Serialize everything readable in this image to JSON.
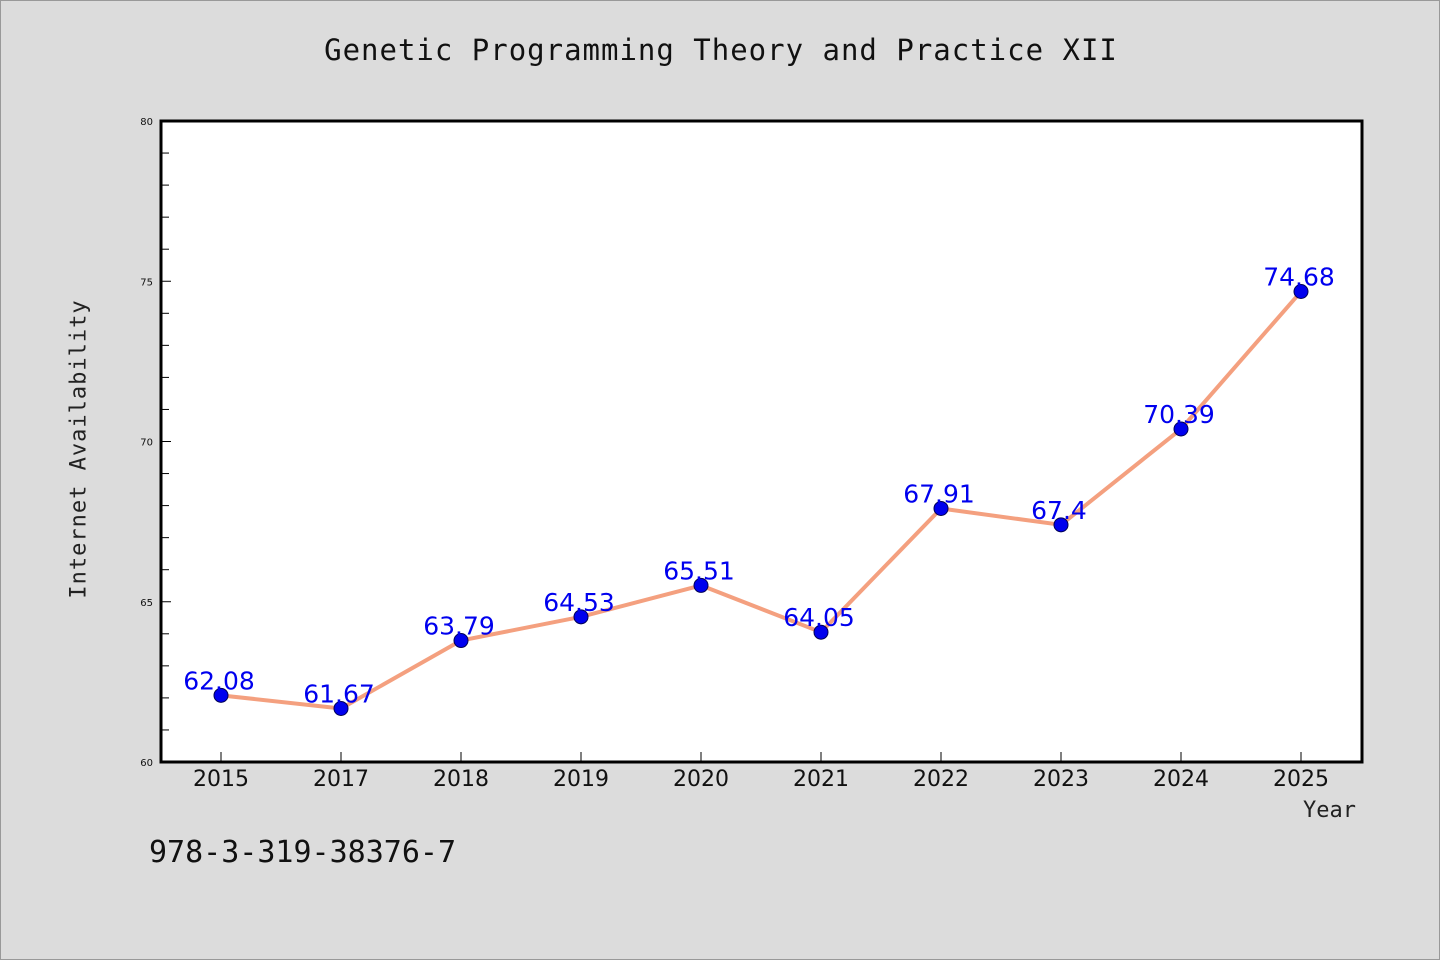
{
  "chart_data": {
    "type": "line",
    "title": "Genetic Programming Theory and Practice XII",
    "xlabel": "Year",
    "ylabel": "Internet Availability",
    "categories": [
      "2015",
      "2017",
      "2018",
      "2019",
      "2020",
      "2021",
      "2022",
      "2023",
      "2024",
      "2025"
    ],
    "series": [
      {
        "values": [
          62.08,
          61.67,
          63.79,
          64.53,
          65.51,
          64.05,
          67.91,
          67.4,
          70.39,
          74.68
        ],
        "data_labels": [
          "62.08",
          "61.67",
          "63.79",
          "64.53",
          "65.51",
          "64.05",
          "67.91",
          "67.4",
          "70.39",
          "74.68"
        ]
      }
    ],
    "ylim": [
      60,
      80
    ],
    "yticks": [
      "60",
      "65",
      "70",
      "75",
      "80"
    ],
    "grid": false,
    "legend": "none",
    "colors": {
      "line": "#f4a07f",
      "marker": "#0000ee",
      "label": "#0000ee",
      "background": "#dcdcdc",
      "plot_background": "#ffffff"
    }
  },
  "footer": {
    "note": "978-3-319-38376-7"
  }
}
